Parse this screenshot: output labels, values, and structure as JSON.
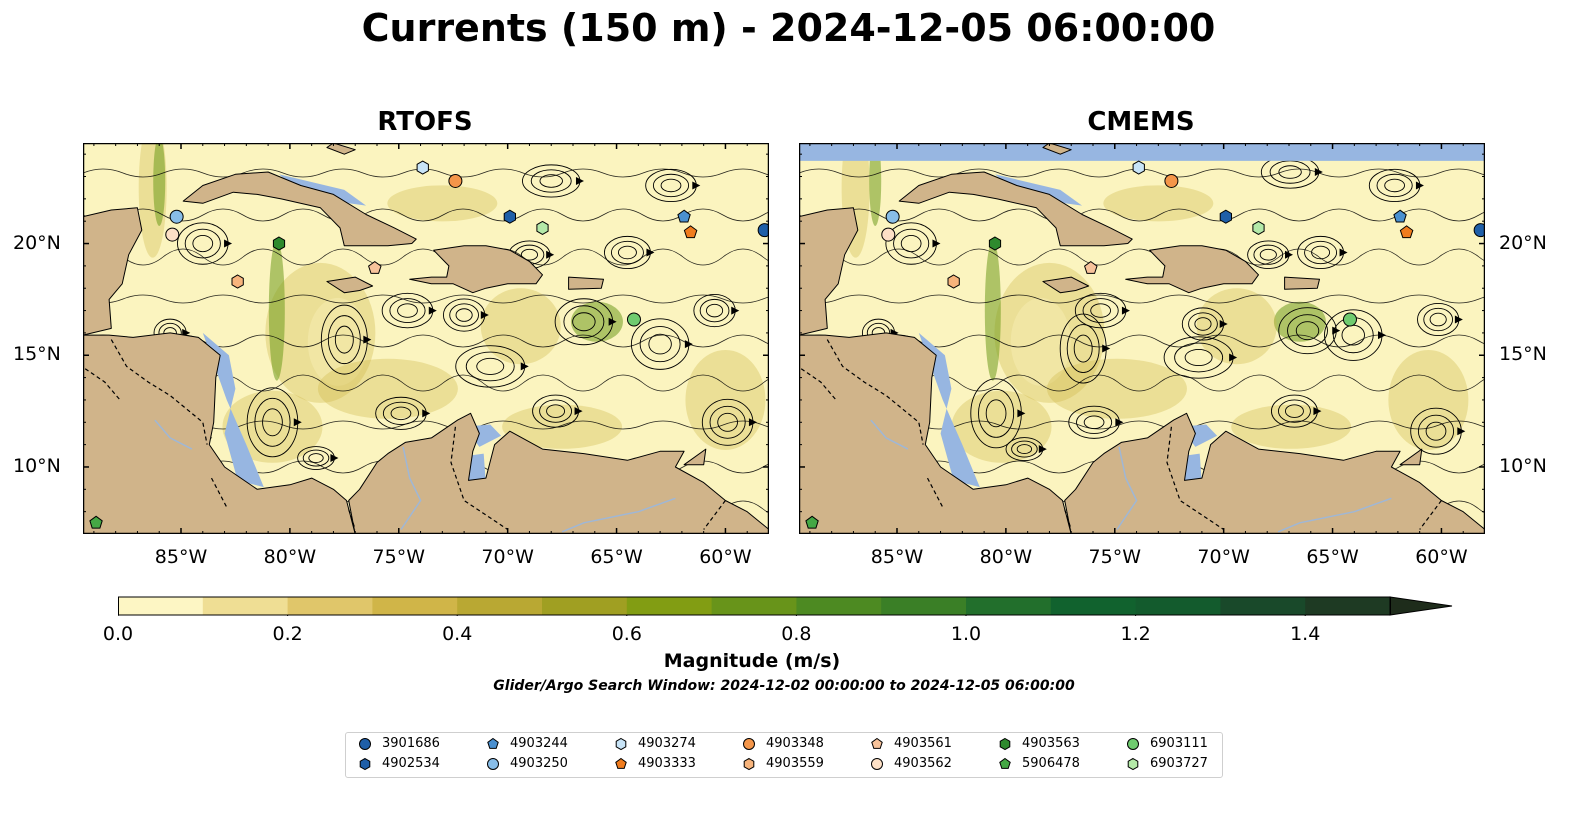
{
  "title": "Currents (150 m) - 2024-12-05 06:00:00",
  "panels": [
    {
      "title": "RTOFS"
    },
    {
      "title": "CMEMS"
    }
  ],
  "map": {
    "lon_range": [
      -89.5,
      -58
    ],
    "lat_range": [
      7,
      24.5
    ],
    "x_ticks": [
      "85°W",
      "80°W",
      "75°W",
      "70°W",
      "65°W",
      "60°W"
    ],
    "y_ticks": [
      "20°N",
      "15°N",
      "10°N"
    ],
    "colors": {
      "ocean": "#97b6e1",
      "land": "#d0b48a",
      "weak_current": "#fbf4bf",
      "mid_current": "#cdb84a",
      "strong_current": "#6f9b1e",
      "streamline": "#000000"
    }
  },
  "colorbar": {
    "label": "Magnitude (m/s)",
    "min": 0.0,
    "max": 1.5,
    "ticks": [
      "0.0",
      "0.2",
      "0.4",
      "0.6",
      "0.8",
      "1.0",
      "1.2",
      "1.4"
    ],
    "extend": "max",
    "levels": [
      "#fdf6c4",
      "#efde94",
      "#e0c66a",
      "#d0b548",
      "#b9a833",
      "#a09f22",
      "#829d13",
      "#68941a",
      "#4d8a22",
      "#3a7f26",
      "#226f2c",
      "#11622e",
      "#135b2d",
      "#19492a",
      "#1e3a23",
      "#1e2c1b"
    ]
  },
  "window_note": "Glider/Argo Search Window: 2024-12-02 00:00:00 to 2024-12-05 06:00:00",
  "legend": {
    "items": [
      {
        "id": "3901686",
        "shape": "circle",
        "color": "#1f5fa8"
      },
      {
        "id": "4902534",
        "shape": "hexagon",
        "color": "#1f5fa8"
      },
      {
        "id": "4903244",
        "shape": "pentagon",
        "color": "#4a90d0"
      },
      {
        "id": "4903250",
        "shape": "circle",
        "color": "#88bde8"
      },
      {
        "id": "4903274",
        "shape": "hexagon",
        "color": "#c8e4f7"
      },
      {
        "id": "4903333",
        "shape": "pentagon",
        "color": "#f07c1e"
      },
      {
        "id": "4903348",
        "shape": "circle",
        "color": "#f4964a"
      },
      {
        "id": "4903559",
        "shape": "hexagon",
        "color": "#f7b47c"
      },
      {
        "id": "4903561",
        "shape": "pentagon",
        "color": "#f8c39b"
      },
      {
        "id": "4903562",
        "shape": "circle",
        "color": "#fde0c6"
      },
      {
        "id": "4903563",
        "shape": "hexagon",
        "color": "#2e8a2e"
      },
      {
        "id": "5906478",
        "shape": "pentagon",
        "color": "#45a845"
      },
      {
        "id": "6903111",
        "shape": "circle",
        "color": "#6fcb6f"
      },
      {
        "id": "6903727",
        "shape": "hexagon",
        "color": "#b4e9a8"
      }
    ]
  },
  "floats_rtofs": [
    {
      "ref": "4903250",
      "lon": -85.2,
      "lat": 21.2
    },
    {
      "ref": "4903562",
      "lon": -85.4,
      "lat": 20.4
    },
    {
      "ref": "4903559",
      "lon": -82.4,
      "lat": 18.3
    },
    {
      "ref": "4903563",
      "lon": -80.5,
      "lat": 20.0
    },
    {
      "ref": "4903561",
      "lon": -76.1,
      "lat": 18.9
    },
    {
      "ref": "4903274",
      "lon": -73.9,
      "lat": 23.4
    },
    {
      "ref": "4903348",
      "lon": -72.4,
      "lat": 22.8
    },
    {
      "ref": "4902534",
      "lon": -69.9,
      "lat": 21.2
    },
    {
      "ref": "6903727",
      "lon": -68.4,
      "lat": 20.7
    },
    {
      "ref": "6903111",
      "lon": -64.2,
      "lat": 16.6
    },
    {
      "ref": "4903244",
      "lon": -61.9,
      "lat": 21.2
    },
    {
      "ref": "4903333",
      "lon": -61.6,
      "lat": 20.5
    },
    {
      "ref": "3901686",
      "lon": -58.2,
      "lat": 20.6
    },
    {
      "ref": "5906478",
      "lon": -88.9,
      "lat": 7.5
    }
  ],
  "floats_cmems": [
    {
      "ref": "4903250",
      "lon": -85.2,
      "lat": 21.2
    },
    {
      "ref": "4903562",
      "lon": -85.4,
      "lat": 20.4
    },
    {
      "ref": "4903559",
      "lon": -82.4,
      "lat": 18.3
    },
    {
      "ref": "4903563",
      "lon": -80.5,
      "lat": 20.0
    },
    {
      "ref": "4903561",
      "lon": -76.1,
      "lat": 18.9
    },
    {
      "ref": "4903274",
      "lon": -73.9,
      "lat": 23.4
    },
    {
      "ref": "4903348",
      "lon": -72.4,
      "lat": 22.8
    },
    {
      "ref": "4902534",
      "lon": -69.9,
      "lat": 21.2
    },
    {
      "ref": "6903727",
      "lon": -68.4,
      "lat": 20.7
    },
    {
      "ref": "6903111",
      "lon": -64.2,
      "lat": 16.6
    },
    {
      "ref": "4903244",
      "lon": -61.9,
      "lat": 21.2
    },
    {
      "ref": "4903333",
      "lon": -61.6,
      "lat": 20.5
    },
    {
      "ref": "3901686",
      "lon": -58.2,
      "lat": 20.6
    },
    {
      "ref": "5906478",
      "lon": -88.9,
      "lat": 7.5
    }
  ]
}
